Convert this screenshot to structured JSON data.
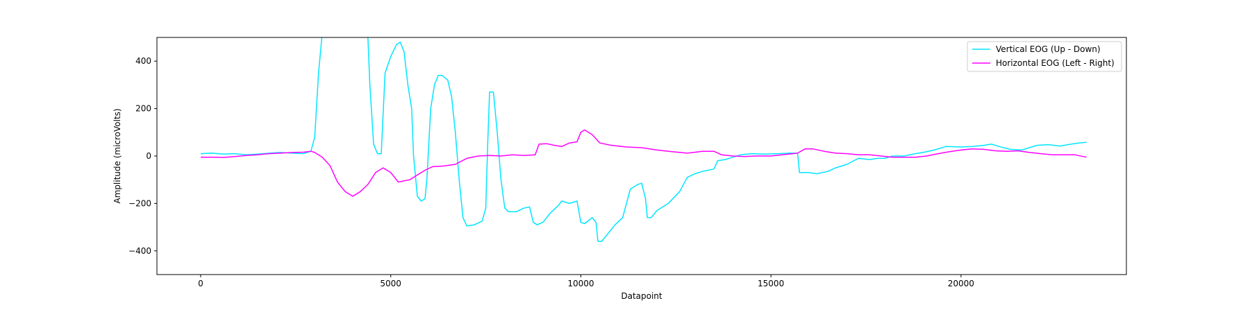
{
  "chart_data": {
    "type": "line",
    "title": "",
    "xlabel": "Datapoint",
    "ylabel": "Amplitude (microVolts)",
    "xlim": [
      -1150,
      24350
    ],
    "ylim": [
      -500,
      500
    ],
    "xticks": [
      0,
      5000,
      10000,
      15000,
      20000
    ],
    "yticks": [
      -400,
      -200,
      0,
      200,
      400
    ],
    "xtick_labels": [
      "0",
      "5000",
      "10000",
      "15000",
      "20000"
    ],
    "ytick_labels": [
      "−400",
      "−200",
      "0",
      "200",
      "400"
    ],
    "grid": false,
    "legend_position": "top-right",
    "series": [
      {
        "name": "Vertical EOG (Up - Down)",
        "color": "#00e5ff",
        "points": [
          [
            0,
            10
          ],
          [
            300,
            12
          ],
          [
            600,
            8
          ],
          [
            900,
            10
          ],
          [
            1200,
            5
          ],
          [
            1500,
            8
          ],
          [
            1800,
            12
          ],
          [
            2100,
            15
          ],
          [
            2400,
            12
          ],
          [
            2700,
            10
          ],
          [
            2900,
            20
          ],
          [
            3000,
            80
          ],
          [
            3100,
            350
          ],
          [
            3200,
            520
          ],
          [
            3400,
            580
          ],
          [
            3700,
            600
          ],
          [
            4000,
            580
          ],
          [
            4200,
            540
          ],
          [
            4400,
            500
          ],
          [
            4450,
            300
          ],
          [
            4550,
            50
          ],
          [
            4650,
            10
          ],
          [
            4750,
            10
          ],
          [
            4850,
            350
          ],
          [
            5000,
            420
          ],
          [
            5150,
            470
          ],
          [
            5250,
            480
          ],
          [
            5350,
            440
          ],
          [
            5450,
            300
          ],
          [
            5550,
            200
          ],
          [
            5600,
            0
          ],
          [
            5700,
            -170
          ],
          [
            5800,
            -190
          ],
          [
            5900,
            -180
          ],
          [
            5950,
            -100
          ],
          [
            6050,
            200
          ],
          [
            6150,
            300
          ],
          [
            6250,
            340
          ],
          [
            6350,
            340
          ],
          [
            6500,
            320
          ],
          [
            6600,
            250
          ],
          [
            6700,
            100
          ],
          [
            6800,
            -100
          ],
          [
            6900,
            -260
          ],
          [
            7000,
            -295
          ],
          [
            7200,
            -290
          ],
          [
            7400,
            -275
          ],
          [
            7500,
            -220
          ],
          [
            7550,
            50
          ],
          [
            7600,
            270
          ],
          [
            7700,
            270
          ],
          [
            7800,
            100
          ],
          [
            7900,
            -100
          ],
          [
            8000,
            -220
          ],
          [
            8100,
            -235
          ],
          [
            8300,
            -235
          ],
          [
            8500,
            -220
          ],
          [
            8650,
            -215
          ],
          [
            8750,
            -280
          ],
          [
            8850,
            -290
          ],
          [
            9000,
            -280
          ],
          [
            9200,
            -240
          ],
          [
            9400,
            -210
          ],
          [
            9500,
            -190
          ],
          [
            9700,
            -200
          ],
          [
            9900,
            -190
          ],
          [
            10000,
            -280
          ],
          [
            10100,
            -285
          ],
          [
            10300,
            -260
          ],
          [
            10400,
            -280
          ],
          [
            10450,
            -360
          ],
          [
            10550,
            -360
          ],
          [
            10700,
            -330
          ],
          [
            10900,
            -290
          ],
          [
            11100,
            -260
          ],
          [
            11300,
            -140
          ],
          [
            11500,
            -120
          ],
          [
            11600,
            -115
          ],
          [
            11700,
            -180
          ],
          [
            11750,
            -260
          ],
          [
            11850,
            -260
          ],
          [
            12000,
            -230
          ],
          [
            12300,
            -200
          ],
          [
            12600,
            -150
          ],
          [
            12800,
            -90
          ],
          [
            13000,
            -75
          ],
          [
            13200,
            -65
          ],
          [
            13500,
            -55
          ],
          [
            13600,
            -20
          ],
          [
            13800,
            -15
          ],
          [
            14000,
            -5
          ],
          [
            14200,
            5
          ],
          [
            14500,
            10
          ],
          [
            14800,
            8
          ],
          [
            15200,
            10
          ],
          [
            15500,
            12
          ],
          [
            15700,
            12
          ],
          [
            15750,
            -70
          ],
          [
            16000,
            -70
          ],
          [
            16200,
            -75
          ],
          [
            16500,
            -65
          ],
          [
            16700,
            -50
          ],
          [
            17000,
            -35
          ],
          [
            17300,
            -10
          ],
          [
            17600,
            -15
          ],
          [
            17800,
            -10
          ],
          [
            18000,
            -10
          ],
          [
            18200,
            0
          ],
          [
            18500,
            0
          ],
          [
            18800,
            10
          ],
          [
            19000,
            15
          ],
          [
            19300,
            25
          ],
          [
            19600,
            40
          ],
          [
            20000,
            38
          ],
          [
            20300,
            40
          ],
          [
            20600,
            45
          ],
          [
            20800,
            50
          ],
          [
            21000,
            40
          ],
          [
            21300,
            28
          ],
          [
            21600,
            25
          ],
          [
            21800,
            35
          ],
          [
            22000,
            45
          ],
          [
            22300,
            48
          ],
          [
            22600,
            42
          ],
          [
            22900,
            50
          ],
          [
            23100,
            55
          ],
          [
            23300,
            58
          ]
        ]
      },
      {
        "name": "Horizontal EOG (Left - Right)",
        "color": "#ff00ff",
        "points": [
          [
            0,
            -5
          ],
          [
            300,
            -5
          ],
          [
            600,
            -6
          ],
          [
            900,
            -2
          ],
          [
            1200,
            2
          ],
          [
            1500,
            5
          ],
          [
            1800,
            10
          ],
          [
            2100,
            12
          ],
          [
            2400,
            15
          ],
          [
            2700,
            16
          ],
          [
            2900,
            20
          ],
          [
            3000,
            15
          ],
          [
            3200,
            -5
          ],
          [
            3400,
            -40
          ],
          [
            3600,
            -110
          ],
          [
            3800,
            -150
          ],
          [
            4000,
            -170
          ],
          [
            4200,
            -150
          ],
          [
            4400,
            -120
          ],
          [
            4600,
            -70
          ],
          [
            4800,
            -50
          ],
          [
            5000,
            -70
          ],
          [
            5200,
            -110
          ],
          [
            5500,
            -100
          ],
          [
            5700,
            -80
          ],
          [
            5900,
            -60
          ],
          [
            6100,
            -45
          ],
          [
            6400,
            -42
          ],
          [
            6700,
            -35
          ],
          [
            7000,
            -10
          ],
          [
            7300,
            0
          ],
          [
            7600,
            2
          ],
          [
            7900,
            0
          ],
          [
            8200,
            5
          ],
          [
            8500,
            2
          ],
          [
            8800,
            5
          ],
          [
            8900,
            50
          ],
          [
            9100,
            52
          ],
          [
            9300,
            45
          ],
          [
            9500,
            40
          ],
          [
            9700,
            55
          ],
          [
            9900,
            60
          ],
          [
            10000,
            100
          ],
          [
            10100,
            110
          ],
          [
            10300,
            90
          ],
          [
            10500,
            55
          ],
          [
            10800,
            45
          ],
          [
            11200,
            38
          ],
          [
            11600,
            35
          ],
          [
            12000,
            25
          ],
          [
            12400,
            18
          ],
          [
            12800,
            12
          ],
          [
            13200,
            20
          ],
          [
            13500,
            20
          ],
          [
            13700,
            5
          ],
          [
            14000,
            0
          ],
          [
            14300,
            -2
          ],
          [
            14600,
            0
          ],
          [
            15000,
            0
          ],
          [
            15300,
            5
          ],
          [
            15700,
            12
          ],
          [
            15900,
            30
          ],
          [
            16100,
            30
          ],
          [
            16400,
            20
          ],
          [
            16700,
            12
          ],
          [
            17000,
            10
          ],
          [
            17300,
            5
          ],
          [
            17600,
            5
          ],
          [
            17900,
            0
          ],
          [
            18200,
            -5
          ],
          [
            18500,
            -5
          ],
          [
            18800,
            -5
          ],
          [
            19100,
            0
          ],
          [
            19400,
            10
          ],
          [
            19700,
            18
          ],
          [
            20000,
            25
          ],
          [
            20300,
            30
          ],
          [
            20600,
            28
          ],
          [
            20900,
            22
          ],
          [
            21200,
            20
          ],
          [
            21500,
            22
          ],
          [
            21800,
            15
          ],
          [
            22100,
            10
          ],
          [
            22400,
            5
          ],
          [
            22700,
            5
          ],
          [
            23000,
            5
          ],
          [
            23300,
            -5
          ]
        ]
      }
    ]
  }
}
